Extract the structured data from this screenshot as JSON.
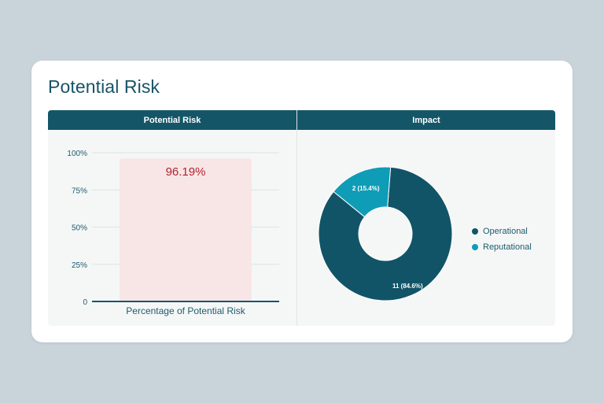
{
  "card": {
    "title": "Potential Risk"
  },
  "left_panel": {
    "header": "Potential Risk"
  },
  "right_panel": {
    "header": "Impact"
  },
  "colors": {
    "header_bg": "#145668",
    "bar_fill": "#f8e6e7",
    "bar_label": "#b3232c",
    "donut_operational": "#125467",
    "donut_reputational": "#0f9cb6"
  },
  "chart_data": [
    {
      "type": "bar",
      "title": "",
      "categories": [
        "Percentage of Potential Risk"
      ],
      "values": [
        96.19
      ],
      "value_labels": [
        "96.19%"
      ],
      "ylim": [
        0,
        100
      ],
      "yticks": [
        0,
        25,
        50,
        75,
        100
      ],
      "ytick_labels": [
        "0",
        "25%",
        "50%",
        "75%",
        "100%"
      ],
      "grid": true
    },
    {
      "type": "pie",
      "title": "",
      "donut": true,
      "categories": [
        "Operational",
        "Reputational"
      ],
      "values": [
        11,
        2
      ],
      "slice_labels": [
        "11 (84.6%)",
        "2 (15.4%)"
      ],
      "legend": "right"
    }
  ]
}
